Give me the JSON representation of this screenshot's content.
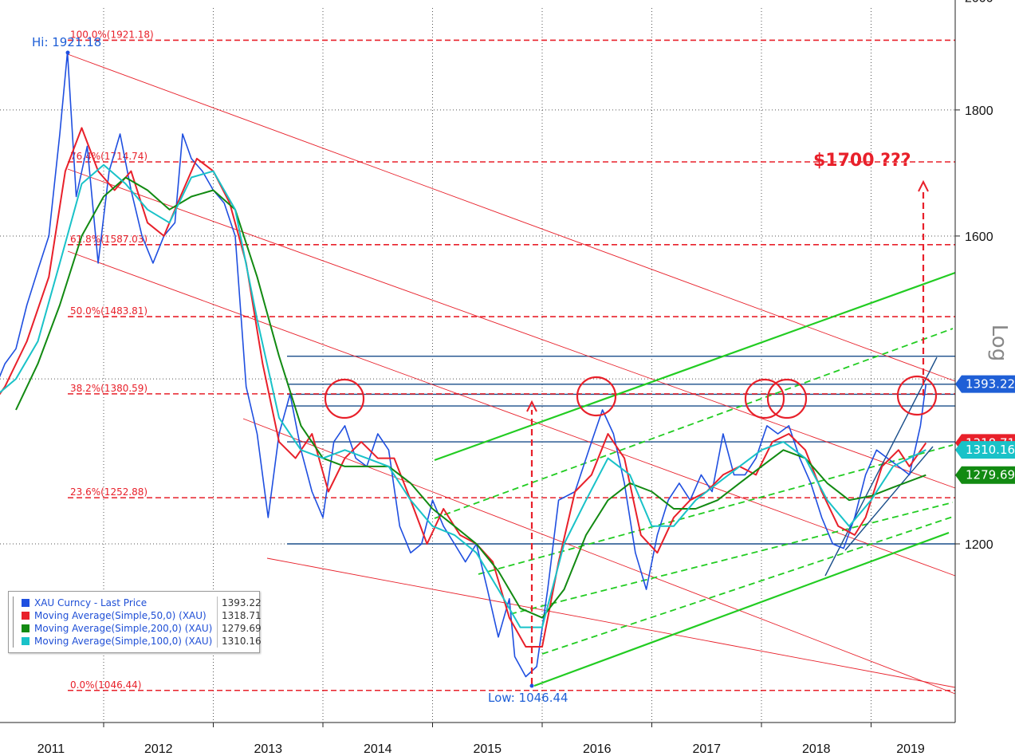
{
  "chart_data": {
    "type": "line",
    "yscale": "log",
    "ylabel": "Log",
    "ylim": [
      1000,
      2000
    ],
    "yticks": [
      1200,
      1400,
      1600,
      1800,
      2000
    ],
    "yticks_labels": [
      "1200",
      "1600",
      "1800",
      "2000"
    ],
    "xticks": [
      "2011",
      "2012",
      "2013",
      "2014",
      "2015",
      "2016",
      "2017",
      "2018",
      "2019"
    ],
    "annotations": {
      "high": "Hi: 1921.18",
      "low": "Low: 1046.44",
      "target": "$1700 ???"
    },
    "fib_levels": [
      {
        "label": "100.0%(1921.18)",
        "value": 1921.18
      },
      {
        "label": "76.4%(1714.74)",
        "value": 1714.74
      },
      {
        "label": "61.8%(1587.03)",
        "value": 1587.03
      },
      {
        "label": "50.0%(1483.81)",
        "value": 1483.81
      },
      {
        "label": "38.2%(1380.59)",
        "value": 1380.59
      },
      {
        "label": "23.6%(1252.88)",
        "value": 1252.88
      },
      {
        "label": "0.0%(1046.44)",
        "value": 1046.44
      }
    ],
    "price_tags": [
      {
        "label": "1393.22",
        "value": 1393.22,
        "color": "#1f5fd6"
      },
      {
        "label": "1318.71",
        "value": 1318.71,
        "color": "#e8202a"
      },
      {
        "label": "1310.16",
        "value": 1310.16,
        "color": "#19c2c8"
      },
      {
        "label": "1279.69",
        "value": 1279.69,
        "color": "#128a12"
      }
    ],
    "series": [
      {
        "name": "XAU Curncy - Last Price",
        "value": "1393.22",
        "color": "#1f4fe0",
        "points": [
          [
            2010.9,
            1350
          ],
          [
            2011.0,
            1385
          ],
          [
            2011.1,
            1420
          ],
          [
            2011.2,
            1440
          ],
          [
            2011.3,
            1500
          ],
          [
            2011.4,
            1550
          ],
          [
            2011.5,
            1600
          ],
          [
            2011.6,
            1760
          ],
          [
            2011.67,
            1900
          ],
          [
            2011.75,
            1660
          ],
          [
            2011.85,
            1740
          ],
          [
            2011.95,
            1560
          ],
          [
            2012.05,
            1700
          ],
          [
            2012.15,
            1760
          ],
          [
            2012.25,
            1670
          ],
          [
            2012.35,
            1600
          ],
          [
            2012.45,
            1560
          ],
          [
            2012.55,
            1600
          ],
          [
            2012.65,
            1620
          ],
          [
            2012.72,
            1760
          ],
          [
            2012.8,
            1720
          ],
          [
            2012.9,
            1700
          ],
          [
            2013.0,
            1670
          ],
          [
            2013.1,
            1650
          ],
          [
            2013.2,
            1600
          ],
          [
            2013.3,
            1390
          ],
          [
            2013.4,
            1330
          ],
          [
            2013.5,
            1230
          ],
          [
            2013.6,
            1330
          ],
          [
            2013.7,
            1380
          ],
          [
            2013.8,
            1310
          ],
          [
            2013.9,
            1260
          ],
          [
            2014.0,
            1230
          ],
          [
            2014.1,
            1320
          ],
          [
            2014.2,
            1340
          ],
          [
            2014.3,
            1300
          ],
          [
            2014.4,
            1290
          ],
          [
            2014.5,
            1330
          ],
          [
            2014.6,
            1310
          ],
          [
            2014.7,
            1220
          ],
          [
            2014.8,
            1190
          ],
          [
            2014.9,
            1200
          ],
          [
            2015.0,
            1250
          ],
          [
            2015.1,
            1220
          ],
          [
            2015.2,
            1200
          ],
          [
            2015.3,
            1180
          ],
          [
            2015.4,
            1200
          ],
          [
            2015.5,
            1150
          ],
          [
            2015.6,
            1100
          ],
          [
            2015.7,
            1140
          ],
          [
            2015.75,
            1080
          ],
          [
            2015.85,
            1060
          ],
          [
            2015.95,
            1070
          ],
          [
            2016.05,
            1150
          ],
          [
            2016.15,
            1250
          ],
          [
            2016.3,
            1260
          ],
          [
            2016.45,
            1320
          ],
          [
            2016.55,
            1360
          ],
          [
            2016.65,
            1330
          ],
          [
            2016.75,
            1270
          ],
          [
            2016.85,
            1190
          ],
          [
            2016.95,
            1150
          ],
          [
            2017.05,
            1210
          ],
          [
            2017.15,
            1250
          ],
          [
            2017.25,
            1270
          ],
          [
            2017.35,
            1250
          ],
          [
            2017.45,
            1280
          ],
          [
            2017.55,
            1260
          ],
          [
            2017.65,
            1330
          ],
          [
            2017.75,
            1280
          ],
          [
            2017.85,
            1280
          ],
          [
            2017.95,
            1300
          ],
          [
            2018.05,
            1340
          ],
          [
            2018.15,
            1330
          ],
          [
            2018.25,
            1340
          ],
          [
            2018.35,
            1300
          ],
          [
            2018.45,
            1270
          ],
          [
            2018.55,
            1230
          ],
          [
            2018.65,
            1200
          ],
          [
            2018.75,
            1195
          ],
          [
            2018.85,
            1230
          ],
          [
            2018.95,
            1280
          ],
          [
            2019.05,
            1310
          ],
          [
            2019.15,
            1300
          ],
          [
            2019.25,
            1290
          ],
          [
            2019.35,
            1280
          ],
          [
            2019.45,
            1340
          ],
          [
            2019.5,
            1393.22
          ]
        ]
      },
      {
        "name": "Moving Average(Simple,50,0) (XAU)",
        "value": "1318.71",
        "color": "#e8202a",
        "points": [
          [
            2010.95,
            1360
          ],
          [
            2011.1,
            1390
          ],
          [
            2011.3,
            1450
          ],
          [
            2011.5,
            1540
          ],
          [
            2011.65,
            1700
          ],
          [
            2011.8,
            1770
          ],
          [
            2011.95,
            1700
          ],
          [
            2012.1,
            1670
          ],
          [
            2012.25,
            1700
          ],
          [
            2012.4,
            1620
          ],
          [
            2012.55,
            1600
          ],
          [
            2012.7,
            1660
          ],
          [
            2012.85,
            1720
          ],
          [
            2013.0,
            1700
          ],
          [
            2013.15,
            1650
          ],
          [
            2013.3,
            1560
          ],
          [
            2013.45,
            1420
          ],
          [
            2013.6,
            1320
          ],
          [
            2013.75,
            1300
          ],
          [
            2013.9,
            1330
          ],
          [
            2014.05,
            1260
          ],
          [
            2014.2,
            1300
          ],
          [
            2014.35,
            1320
          ],
          [
            2014.5,
            1300
          ],
          [
            2014.65,
            1300
          ],
          [
            2014.8,
            1250
          ],
          [
            2014.95,
            1200
          ],
          [
            2015.1,
            1240
          ],
          [
            2015.25,
            1210
          ],
          [
            2015.4,
            1200
          ],
          [
            2015.55,
            1180
          ],
          [
            2015.7,
            1120
          ],
          [
            2015.85,
            1090
          ],
          [
            2016.0,
            1090
          ],
          [
            2016.15,
            1180
          ],
          [
            2016.3,
            1260
          ],
          [
            2016.45,
            1280
          ],
          [
            2016.6,
            1330
          ],
          [
            2016.75,
            1300
          ],
          [
            2016.9,
            1210
          ],
          [
            2017.05,
            1190
          ],
          [
            2017.2,
            1230
          ],
          [
            2017.35,
            1250
          ],
          [
            2017.5,
            1260
          ],
          [
            2017.65,
            1280
          ],
          [
            2017.8,
            1290
          ],
          [
            2017.95,
            1280
          ],
          [
            2018.1,
            1320
          ],
          [
            2018.25,
            1330
          ],
          [
            2018.4,
            1310
          ],
          [
            2018.55,
            1260
          ],
          [
            2018.7,
            1220
          ],
          [
            2018.85,
            1210
          ],
          [
            2018.95,
            1230
          ],
          [
            2019.1,
            1290
          ],
          [
            2019.25,
            1310
          ],
          [
            2019.35,
            1290
          ],
          [
            2019.5,
            1318.71
          ]
        ]
      },
      {
        "name": "Moving Average(Simple,200,0) (XAU)",
        "value": "1279.69",
        "color": "#128a12",
        "points": [
          [
            2011.2,
            1360
          ],
          [
            2011.4,
            1420
          ],
          [
            2011.6,
            1500
          ],
          [
            2011.8,
            1600
          ],
          [
            2012.0,
            1660
          ],
          [
            2012.2,
            1690
          ],
          [
            2012.4,
            1670
          ],
          [
            2012.6,
            1640
          ],
          [
            2012.8,
            1660
          ],
          [
            2013.0,
            1670
          ],
          [
            2013.2,
            1640
          ],
          [
            2013.4,
            1540
          ],
          [
            2013.6,
            1430
          ],
          [
            2013.8,
            1340
          ],
          [
            2014.0,
            1300
          ],
          [
            2014.2,
            1290
          ],
          [
            2014.4,
            1290
          ],
          [
            2014.6,
            1290
          ],
          [
            2014.8,
            1270
          ],
          [
            2015.0,
            1240
          ],
          [
            2015.2,
            1220
          ],
          [
            2015.4,
            1200
          ],
          [
            2015.6,
            1170
          ],
          [
            2015.8,
            1130
          ],
          [
            2016.0,
            1120
          ],
          [
            2016.2,
            1150
          ],
          [
            2016.4,
            1210
          ],
          [
            2016.6,
            1250
          ],
          [
            2016.8,
            1270
          ],
          [
            2017.0,
            1260
          ],
          [
            2017.2,
            1240
          ],
          [
            2017.4,
            1240
          ],
          [
            2017.6,
            1250
          ],
          [
            2017.8,
            1270
          ],
          [
            2018.0,
            1290
          ],
          [
            2018.2,
            1310
          ],
          [
            2018.4,
            1300
          ],
          [
            2018.6,
            1270
          ],
          [
            2018.8,
            1250
          ],
          [
            2019.0,
            1255
          ],
          [
            2019.2,
            1265
          ],
          [
            2019.5,
            1279.69
          ]
        ]
      },
      {
        "name": "Moving Average(Simple,100,0) (XAU)",
        "value": "1310.16",
        "color": "#19c2c8",
        "points": [
          [
            2010.95,
            1370
          ],
          [
            2011.2,
            1400
          ],
          [
            2011.4,
            1450
          ],
          [
            2011.6,
            1560
          ],
          [
            2011.8,
            1680
          ],
          [
            2012.0,
            1710
          ],
          [
            2012.2,
            1680
          ],
          [
            2012.4,
            1640
          ],
          [
            2012.6,
            1620
          ],
          [
            2012.8,
            1690
          ],
          [
            2013.0,
            1700
          ],
          [
            2013.2,
            1640
          ],
          [
            2013.4,
            1480
          ],
          [
            2013.6,
            1350
          ],
          [
            2013.8,
            1310
          ],
          [
            2014.0,
            1300
          ],
          [
            2014.2,
            1310
          ],
          [
            2014.4,
            1300
          ],
          [
            2014.6,
            1290
          ],
          [
            2014.8,
            1250
          ],
          [
            2015.0,
            1220
          ],
          [
            2015.2,
            1210
          ],
          [
            2015.4,
            1190
          ],
          [
            2015.6,
            1150
          ],
          [
            2015.8,
            1110
          ],
          [
            2016.0,
            1110
          ],
          [
            2016.2,
            1200
          ],
          [
            2016.4,
            1250
          ],
          [
            2016.6,
            1300
          ],
          [
            2016.8,
            1280
          ],
          [
            2017.0,
            1220
          ],
          [
            2017.2,
            1220
          ],
          [
            2017.4,
            1250
          ],
          [
            2017.6,
            1270
          ],
          [
            2017.8,
            1290
          ],
          [
            2018.0,
            1310
          ],
          [
            2018.2,
            1320
          ],
          [
            2018.4,
            1300
          ],
          [
            2018.6,
            1250
          ],
          [
            2018.8,
            1220
          ],
          [
            2019.0,
            1250
          ],
          [
            2019.2,
            1290
          ],
          [
            2019.5,
            1310.16
          ]
        ]
      }
    ],
    "grid": true,
    "legend": "bottom-left"
  }
}
